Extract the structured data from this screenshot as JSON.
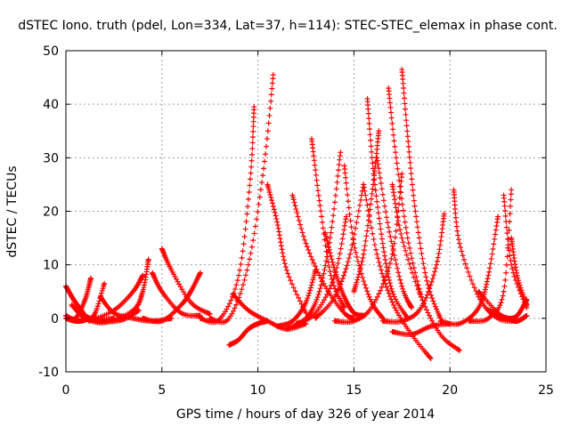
{
  "chart_data": {
    "type": "scatter",
    "title": "dSTEC Iono. truth (pdel, Lon=334, Lat=37, h=114): STEC-STEC_elemax in phase cont.",
    "xlabel": "GPS time / hours of day 326 of year 2014",
    "ylabel": "dSTEC  / TECUs",
    "xlim": [
      0,
      25
    ],
    "ylim": [
      -10,
      50
    ],
    "xticks": [
      0,
      5,
      10,
      15,
      20,
      25
    ],
    "yticks": [
      -10,
      0,
      10,
      20,
      30,
      40,
      50
    ],
    "grid": true,
    "marker": "+",
    "color": "#ff0000",
    "series": [
      {
        "x": [
          0.0,
          0.4,
          0.8,
          1.0,
          1.5,
          2.5
        ],
        "y": [
          6.0,
          3.5,
          1.5,
          0.5,
          -0.2,
          0.0
        ]
      },
      {
        "x": [
          0.0,
          0.5,
          1.0,
          1.5,
          2.0
        ],
        "y": [
          0.0,
          -0.5,
          -0.3,
          0.8,
          6.5
        ]
      },
      {
        "x": [
          0.0,
          0.5,
          1.0,
          1.3
        ],
        "y": [
          0.5,
          0.0,
          3.5,
          7.5
        ]
      },
      {
        "x": [
          0.3,
          1.0,
          2.0,
          3.0,
          3.8
        ],
        "y": [
          2.5,
          0.0,
          -0.6,
          -0.2,
          1.5
        ]
      },
      {
        "x": [
          1.0,
          2.0,
          3.5,
          4.0,
          4.3
        ],
        "y": [
          0.0,
          -0.8,
          1.5,
          5.0,
          11.0
        ]
      },
      {
        "x": [
          1.2,
          2.5,
          3.5,
          4.0
        ],
        "y": [
          -0.5,
          1.5,
          5.0,
          8.0
        ]
      },
      {
        "x": [
          1.8,
          2.5,
          3.5,
          4.5,
          5.5
        ],
        "y": [
          4.0,
          1.0,
          0.0,
          -0.5,
          0.0
        ]
      },
      {
        "x": [
          4.5,
          5.0,
          6.0,
          7.0
        ],
        "y": [
          8.5,
          5.0,
          1.0,
          0.5
        ]
      },
      {
        "x": [
          5.0,
          5.5,
          6.5,
          7.5
        ],
        "y": [
          13.0,
          9.0,
          3.0,
          0.8
        ]
      },
      {
        "x": [
          4.0,
          5.0,
          6.0,
          6.5,
          7.0
        ],
        "y": [
          0.0,
          -0.5,
          2.5,
          5.0,
          8.5
        ]
      },
      {
        "x": [
          7.0,
          8.0,
          9.0,
          9.6,
          9.8
        ],
        "y": [
          0.0,
          -0.2,
          8.0,
          26.0,
          39.5
        ]
      },
      {
        "x": [
          7.5,
          8.5,
          9.5,
          10.3,
          10.8
        ],
        "y": [
          0.0,
          0.0,
          10.0,
          28.0,
          45.5
        ]
      },
      {
        "x": [
          8.5,
          9.0,
          9.5,
          10.0,
          10.5
        ],
        "y": [
          -5.0,
          -4.0,
          -2.0,
          -1.0,
          -0.5
        ]
      },
      {
        "x": [
          8.7,
          9.5,
          10.5,
          11.5,
          12.5
        ],
        "y": [
          4.5,
          1.5,
          -0.5,
          -2.0,
          -1.0
        ]
      },
      {
        "x": [
          10.5,
          11.0,
          11.5,
          12.5
        ],
        "y": [
          25.0,
          18.0,
          9.0,
          1.0
        ]
      },
      {
        "x": [
          11.0,
          11.8,
          12.5,
          13.0
        ],
        "y": [
          -1.5,
          -0.5,
          3.0,
          9.0
        ]
      },
      {
        "x": [
          11.5,
          12.5,
          13.2,
          13.8,
          14.3
        ],
        "y": [
          -2.0,
          0.0,
          5.0,
          16.0,
          31.0
        ]
      },
      {
        "x": [
          11.8,
          12.5,
          13.5,
          14.5,
          15.0
        ],
        "y": [
          23.0,
          14.0,
          6.0,
          1.0,
          0.0
        ]
      },
      {
        "x": [
          12.8,
          13.2,
          13.8,
          14.5
        ],
        "y": [
          33.5,
          22.0,
          8.0,
          2.0
        ]
      },
      {
        "x": [
          12.0,
          13.0,
          14.0,
          14.6
        ],
        "y": [
          -1.0,
          1.0,
          8.0,
          19.0
        ]
      },
      {
        "x": [
          13.0,
          14.0,
          14.8,
          15.5
        ],
        "y": [
          0.0,
          4.0,
          12.0,
          25.0
        ]
      },
      {
        "x": [
          14.5,
          15.0,
          15.8,
          16.5
        ],
        "y": [
          28.5,
          14.0,
          4.0,
          0.0
        ]
      },
      {
        "x": [
          13.5,
          14.0,
          14.5,
          15.0,
          15.5
        ],
        "y": [
          16.0,
          9.0,
          4.0,
          1.0,
          0.5
        ]
      },
      {
        "x": [
          15.0,
          15.5,
          16.0,
          16.3
        ],
        "y": [
          5.0,
          12.0,
          25.0,
          35.0
        ]
      },
      {
        "x": [
          15.7,
          16.0,
          16.5,
          17.0,
          17.8
        ],
        "y": [
          41.0,
          28.0,
          14.0,
          5.0,
          0.0
        ]
      },
      {
        "x": [
          15.5,
          16.2,
          17.0,
          18.0,
          19.0
        ],
        "y": [
          25.0,
          12.0,
          3.0,
          -3.0,
          -7.5
        ]
      },
      {
        "x": [
          16.2,
          16.8,
          17.5,
          18.0
        ],
        "y": [
          30.0,
          17.0,
          6.0,
          2.0
        ]
      },
      {
        "x": [
          16.8,
          17.2,
          17.8,
          18.5
        ],
        "y": [
          43.0,
          30.0,
          15.0,
          4.0
        ]
      },
      {
        "x": [
          17.5,
          17.8,
          18.2,
          18.8,
          19.5
        ],
        "y": [
          46.5,
          34.0,
          20.0,
          7.0,
          0.0
        ]
      },
      {
        "x": [
          17.0,
          17.5,
          18.5,
          19.5,
          20.5
        ],
        "y": [
          25.0,
          15.0,
          4.0,
          -3.0,
          -6.0
        ]
      },
      {
        "x": [
          14.0,
          15.0,
          16.0,
          17.0,
          17.5
        ],
        "y": [
          -0.5,
          -0.5,
          2.5,
          12.0,
          27.0
        ]
      },
      {
        "x": [
          16.5,
          17.5,
          18.5,
          19.3,
          19.7
        ],
        "y": [
          -0.5,
          -0.5,
          2.0,
          10.0,
          19.5
        ]
      },
      {
        "x": [
          17.0,
          18.0,
          19.0,
          20.0
        ],
        "y": [
          -2.5,
          -3.0,
          -1.5,
          -1.0
        ]
      },
      {
        "x": [
          20.2,
          20.5,
          21.5,
          22.5,
          23.5
        ],
        "y": [
          24.0,
          14.0,
          4.0,
          0.0,
          -0.5
        ]
      },
      {
        "x": [
          19.5,
          20.5,
          21.5,
          22.0,
          22.5
        ],
        "y": [
          -0.5,
          -1.0,
          2.0,
          8.0,
          19.0
        ]
      },
      {
        "x": [
          21.0,
          22.0,
          22.8,
          23.2
        ],
        "y": [
          -0.5,
          0.0,
          5.0,
          24.0
        ]
      },
      {
        "x": [
          22.8,
          23.2,
          24.0
        ],
        "y": [
          23.0,
          10.0,
          2.0
        ]
      },
      {
        "x": [
          21.5,
          22.5,
          23.0,
          23.5,
          24.0
        ],
        "y": [
          5.0,
          1.0,
          0.0,
          0.5,
          3.5
        ]
      },
      {
        "x": [
          23.2,
          23.5,
          24.0
        ],
        "y": [
          15.0,
          8.0,
          2.5
        ]
      },
      {
        "x": [
          22.0,
          23.0,
          23.5,
          24.0
        ],
        "y": [
          1.5,
          0.0,
          -0.5,
          0.5
        ]
      }
    ]
  }
}
